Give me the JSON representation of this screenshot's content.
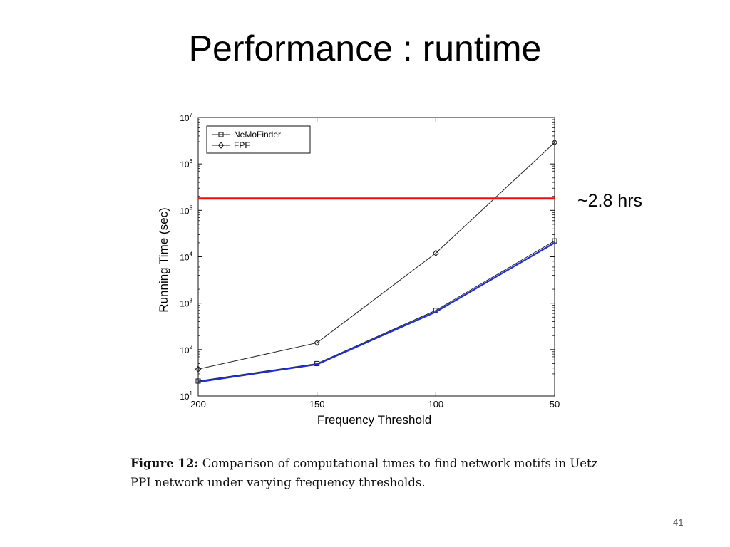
{
  "slide": {
    "title": "Performance : runtime",
    "annotation": "~2.8 hrs",
    "caption_label": "Figure 12:",
    "caption_text": "Comparison of computational times to find network motifs in Uetz PPI network under varying frequency thresholds.",
    "page_number": "41"
  },
  "chart_data": {
    "type": "line",
    "xlabel": "Frequency Threshold",
    "ylabel": "Running Time (sec)",
    "categories": [
      "200",
      "150",
      "100",
      "50"
    ],
    "y_scale": "log",
    "ylim": [
      10,
      10000000
    ],
    "y_ticks": [
      {
        "value": 10,
        "base": "10",
        "exp": "1"
      },
      {
        "value": 100,
        "base": "10",
        "exp": "2"
      },
      {
        "value": 1000,
        "base": "10",
        "exp": "3"
      },
      {
        "value": 10000,
        "base": "10",
        "exp": "4"
      },
      {
        "value": 100000,
        "base": "10",
        "exp": "5"
      },
      {
        "value": 1000000,
        "base": "10",
        "exp": "6"
      },
      {
        "value": 10000000,
        "base": "10",
        "exp": "7"
      }
    ],
    "legend_position": "top-left",
    "series": [
      {
        "name": "NeMoFinder",
        "marker": "square",
        "color": "#222222",
        "values": [
          21,
          50,
          700,
          22000
        ]
      },
      {
        "name": "FPF",
        "marker": "diamond",
        "color": "#222222",
        "values": [
          38,
          140,
          12000,
          2900000
        ]
      }
    ],
    "overlay_line": {
      "color": "#1f2fd6",
      "values": [
        20,
        48,
        650,
        20000
      ]
    },
    "threshold_line": {
      "color": "#e81010",
      "value": 180000
    }
  }
}
